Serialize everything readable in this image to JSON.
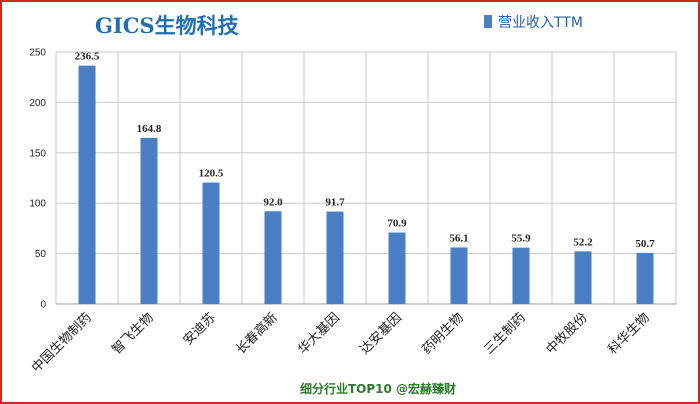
{
  "chart_data": {
    "type": "bar",
    "title": "GICS生物科技",
    "categories": [
      "中国生物制药",
      "智飞生物",
      "安迪苏",
      "长春高新",
      "华大基因",
      "达安基因",
      "药明生物",
      "三生制药",
      "中牧股份",
      "科华生物"
    ],
    "series": [
      {
        "name": "营业收入TTM",
        "values": [
          236.5,
          164.8,
          120.5,
          92.0,
          91.7,
          70.9,
          56.1,
          55.9,
          52.2,
          50.7
        ]
      }
    ],
    "value_labels": [
      "236.5",
      "164.8",
      "120.5",
      "92.0",
      "91.7",
      "70.9",
      "56.1",
      "55.9",
      "52.2",
      "50.7"
    ],
    "y_ticks": [
      0,
      50,
      100,
      150,
      200,
      250
    ],
    "ylim": [
      0,
      250
    ],
    "grid": true,
    "legend_position": "top-right",
    "colors": {
      "bar": "#4a7fc6",
      "grid": "#c8c8c8",
      "title": "#1f6fb5",
      "footer": "#2a7a2a",
      "border": "#e02020"
    }
  },
  "footer": "细分行业TOP10 @宏赫臻财"
}
